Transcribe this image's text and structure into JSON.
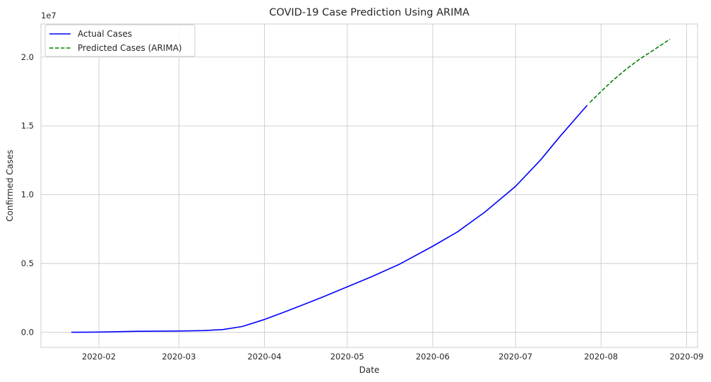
{
  "chart_data": {
    "type": "line",
    "title": "COVID-19 Case Prediction Using ARIMA",
    "xlabel": "Date",
    "ylabel": "Confirmed Cases",
    "y_offset_label": "1e7",
    "grid": true,
    "legend_position": "upper-left",
    "xlim": [
      "2020-01-11",
      "2020-09-05"
    ],
    "ylim": [
      -1100000,
      22400000
    ],
    "x_ticks": [
      {
        "date": "2020-02-01",
        "label": "2020-02"
      },
      {
        "date": "2020-03-01",
        "label": "2020-03"
      },
      {
        "date": "2020-04-01",
        "label": "2020-04"
      },
      {
        "date": "2020-05-01",
        "label": "2020-05"
      },
      {
        "date": "2020-06-01",
        "label": "2020-06"
      },
      {
        "date": "2020-07-01",
        "label": "2020-07"
      },
      {
        "date": "2020-08-01",
        "label": "2020-08"
      },
      {
        "date": "2020-09-01",
        "label": "2020-09"
      }
    ],
    "y_ticks": [
      {
        "value": 0,
        "label": "0.0"
      },
      {
        "value": 5000000,
        "label": "0.5"
      },
      {
        "value": 10000000,
        "label": "1.0"
      },
      {
        "value": 15000000,
        "label": "1.5"
      },
      {
        "value": 20000000,
        "label": "2.0"
      }
    ],
    "series": [
      {
        "name": "Actual Cases",
        "color": "#0000ff",
        "style": "solid",
        "points": [
          [
            "2020-01-22",
            0
          ],
          [
            "2020-02-01",
            12000
          ],
          [
            "2020-02-15",
            69000
          ],
          [
            "2020-03-01",
            88000
          ],
          [
            "2020-03-10",
            120000
          ],
          [
            "2020-03-17",
            200000
          ],
          [
            "2020-03-24",
            420000
          ],
          [
            "2020-04-01",
            930000
          ],
          [
            "2020-04-08",
            1450000
          ],
          [
            "2020-04-15",
            2000000
          ],
          [
            "2020-04-22",
            2550000
          ],
          [
            "2020-05-01",
            3300000
          ],
          [
            "2020-05-10",
            4050000
          ],
          [
            "2020-05-20",
            4950000
          ],
          [
            "2020-06-01",
            6250000
          ],
          [
            "2020-06-10",
            7300000
          ],
          [
            "2020-06-20",
            8750000
          ],
          [
            "2020-07-01",
            10600000
          ],
          [
            "2020-07-10",
            12500000
          ],
          [
            "2020-07-17",
            14200000
          ],
          [
            "2020-07-27",
            16500000
          ]
        ]
      },
      {
        "name": "Predicted Cases (ARIMA)",
        "color": "#008000",
        "style": "dashed",
        "points": [
          [
            "2020-07-28",
            16700000
          ],
          [
            "2020-08-01",
            17500000
          ],
          [
            "2020-08-05",
            18250000
          ],
          [
            "2020-08-10",
            19100000
          ],
          [
            "2020-08-15",
            19850000
          ],
          [
            "2020-08-20",
            20500000
          ],
          [
            "2020-08-26",
            21300000
          ]
        ]
      }
    ]
  }
}
